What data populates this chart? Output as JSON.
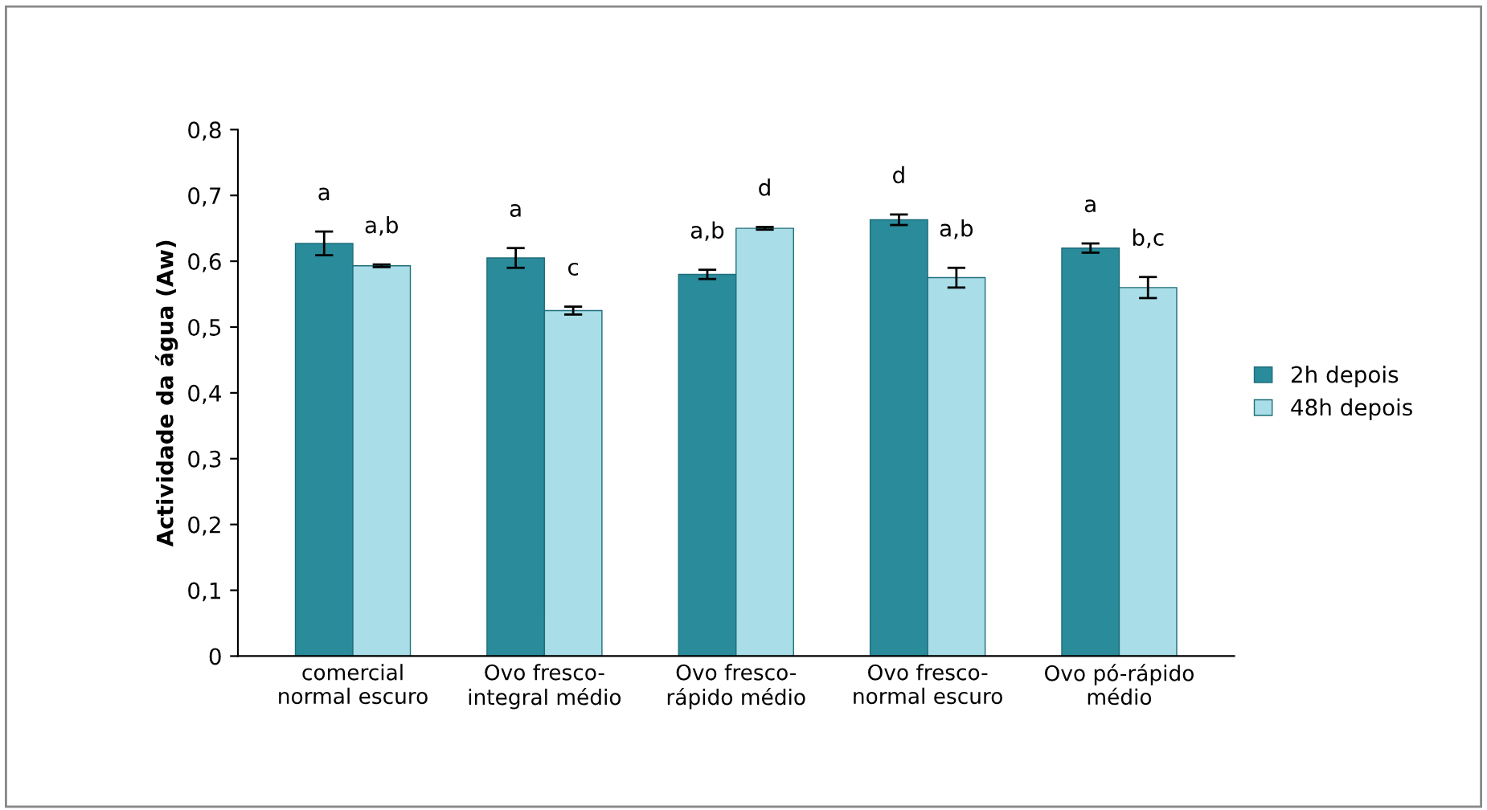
{
  "chart_data": {
    "type": "bar",
    "ylabel": "Actividade da água (Aw)",
    "categories": [
      "comercial\nnormal escuro",
      "Ovo fresco-\nintegral médio",
      "Ovo fresco-\nrápido médio",
      "Ovo fresco-\nnormal escuro",
      "Ovo pó-rápido\nmédio"
    ],
    "series": [
      {
        "name": "2h depois",
        "color": "#2a8b9b",
        "values": [
          0.627,
          0.605,
          0.58,
          0.663,
          0.62
        ],
        "errors": [
          0.018,
          0.015,
          0.007,
          0.008,
          0.007
        ],
        "value_labels": [
          "a",
          "a",
          "a,b",
          "d",
          "a"
        ]
      },
      {
        "name": "48h depois",
        "color": "#a9dde8",
        "values": [
          0.593,
          0.525,
          0.65,
          0.575,
          0.56
        ],
        "errors": [
          0.002,
          0.006,
          0.002,
          0.015,
          0.016
        ],
        "value_labels": [
          "a,b",
          "c",
          "d",
          "a,b",
          "b,c"
        ]
      }
    ],
    "ylim": [
      0,
      0.8
    ],
    "yticks": [
      0,
      {
        "value": 0.1,
        "label": "0,1"
      },
      {
        "value": 0.2,
        "label": "0,2"
      },
      {
        "value": 0.3,
        "label": "0,3"
      },
      {
        "value": 0.4,
        "label": "0,4"
      },
      {
        "value": 0.5,
        "label": "0,5"
      },
      {
        "value": 0.6,
        "label": "0,6"
      },
      {
        "value": 0.7,
        "label": "0,7"
      },
      {
        "value": 0.8,
        "label": "0,8"
      }
    ],
    "grid": false,
    "legend": "right"
  }
}
